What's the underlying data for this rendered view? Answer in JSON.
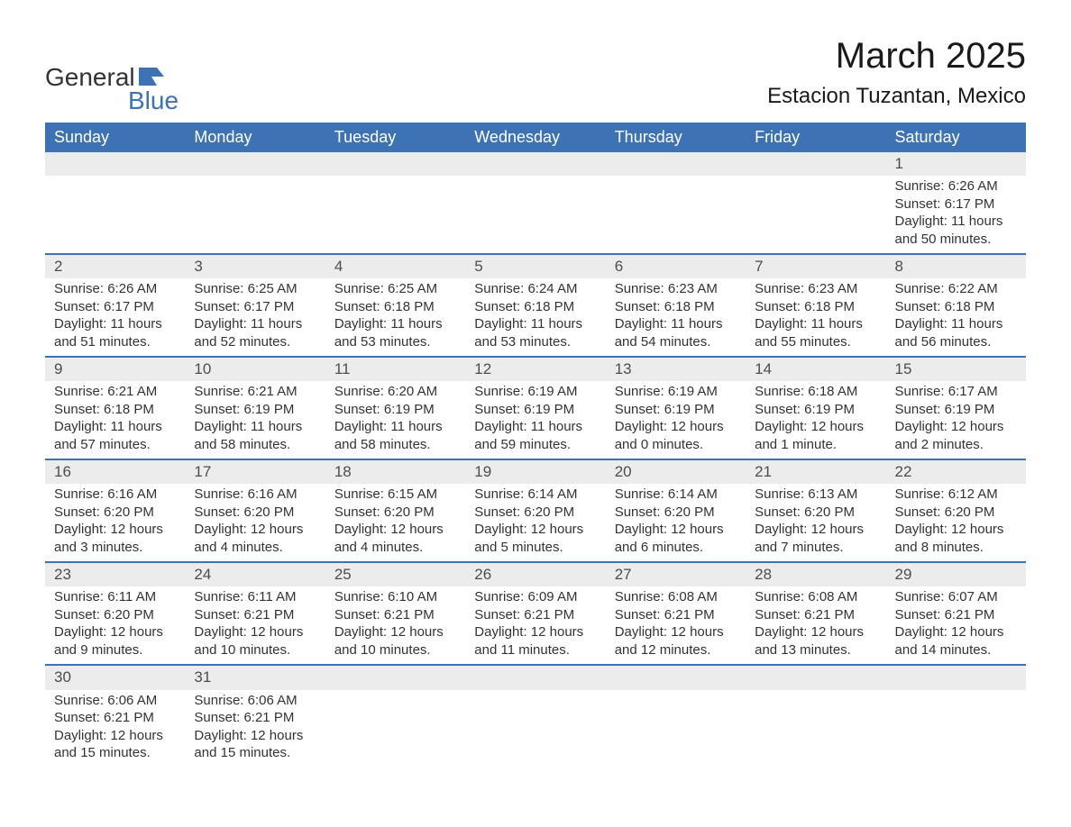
{
  "brand": {
    "line1": "General",
    "line2": "Blue"
  },
  "title": "March 2025",
  "location": "Estacion Tuzantan, Mexico",
  "colors": {
    "header_bg": "#3d72b4",
    "header_text": "#ffffff",
    "daynum_bg": "#ececec",
    "border": "#3d72b4",
    "text": "#333333",
    "brand_blue": "#3d72b4",
    "background": "#ffffff"
  },
  "typography": {
    "title_fontsize": 40,
    "location_fontsize": 24,
    "header_fontsize": 18,
    "cell_fontsize": 15,
    "daynum_fontsize": 17,
    "logo_fontsize": 28
  },
  "weekdays": [
    "Sunday",
    "Monday",
    "Tuesday",
    "Wednesday",
    "Thursday",
    "Friday",
    "Saturday"
  ],
  "weeks": [
    [
      null,
      null,
      null,
      null,
      null,
      null,
      {
        "n": "1",
        "sunrise": "Sunrise: 6:26 AM",
        "sunset": "Sunset: 6:17 PM",
        "day1": "Daylight: 11 hours",
        "day2": "and 50 minutes."
      }
    ],
    [
      {
        "n": "2",
        "sunrise": "Sunrise: 6:26 AM",
        "sunset": "Sunset: 6:17 PM",
        "day1": "Daylight: 11 hours",
        "day2": "and 51 minutes."
      },
      {
        "n": "3",
        "sunrise": "Sunrise: 6:25 AM",
        "sunset": "Sunset: 6:17 PM",
        "day1": "Daylight: 11 hours",
        "day2": "and 52 minutes."
      },
      {
        "n": "4",
        "sunrise": "Sunrise: 6:25 AM",
        "sunset": "Sunset: 6:18 PM",
        "day1": "Daylight: 11 hours",
        "day2": "and 53 minutes."
      },
      {
        "n": "5",
        "sunrise": "Sunrise: 6:24 AM",
        "sunset": "Sunset: 6:18 PM",
        "day1": "Daylight: 11 hours",
        "day2": "and 53 minutes."
      },
      {
        "n": "6",
        "sunrise": "Sunrise: 6:23 AM",
        "sunset": "Sunset: 6:18 PM",
        "day1": "Daylight: 11 hours",
        "day2": "and 54 minutes."
      },
      {
        "n": "7",
        "sunrise": "Sunrise: 6:23 AM",
        "sunset": "Sunset: 6:18 PM",
        "day1": "Daylight: 11 hours",
        "day2": "and 55 minutes."
      },
      {
        "n": "8",
        "sunrise": "Sunrise: 6:22 AM",
        "sunset": "Sunset: 6:18 PM",
        "day1": "Daylight: 11 hours",
        "day2": "and 56 minutes."
      }
    ],
    [
      {
        "n": "9",
        "sunrise": "Sunrise: 6:21 AM",
        "sunset": "Sunset: 6:18 PM",
        "day1": "Daylight: 11 hours",
        "day2": "and 57 minutes."
      },
      {
        "n": "10",
        "sunrise": "Sunrise: 6:21 AM",
        "sunset": "Sunset: 6:19 PM",
        "day1": "Daylight: 11 hours",
        "day2": "and 58 minutes."
      },
      {
        "n": "11",
        "sunrise": "Sunrise: 6:20 AM",
        "sunset": "Sunset: 6:19 PM",
        "day1": "Daylight: 11 hours",
        "day2": "and 58 minutes."
      },
      {
        "n": "12",
        "sunrise": "Sunrise: 6:19 AM",
        "sunset": "Sunset: 6:19 PM",
        "day1": "Daylight: 11 hours",
        "day2": "and 59 minutes."
      },
      {
        "n": "13",
        "sunrise": "Sunrise: 6:19 AM",
        "sunset": "Sunset: 6:19 PM",
        "day1": "Daylight: 12 hours",
        "day2": "and 0 minutes."
      },
      {
        "n": "14",
        "sunrise": "Sunrise: 6:18 AM",
        "sunset": "Sunset: 6:19 PM",
        "day1": "Daylight: 12 hours",
        "day2": "and 1 minute."
      },
      {
        "n": "15",
        "sunrise": "Sunrise: 6:17 AM",
        "sunset": "Sunset: 6:19 PM",
        "day1": "Daylight: 12 hours",
        "day2": "and 2 minutes."
      }
    ],
    [
      {
        "n": "16",
        "sunrise": "Sunrise: 6:16 AM",
        "sunset": "Sunset: 6:20 PM",
        "day1": "Daylight: 12 hours",
        "day2": "and 3 minutes."
      },
      {
        "n": "17",
        "sunrise": "Sunrise: 6:16 AM",
        "sunset": "Sunset: 6:20 PM",
        "day1": "Daylight: 12 hours",
        "day2": "and 4 minutes."
      },
      {
        "n": "18",
        "sunrise": "Sunrise: 6:15 AM",
        "sunset": "Sunset: 6:20 PM",
        "day1": "Daylight: 12 hours",
        "day2": "and 4 minutes."
      },
      {
        "n": "19",
        "sunrise": "Sunrise: 6:14 AM",
        "sunset": "Sunset: 6:20 PM",
        "day1": "Daylight: 12 hours",
        "day2": "and 5 minutes."
      },
      {
        "n": "20",
        "sunrise": "Sunrise: 6:14 AM",
        "sunset": "Sunset: 6:20 PM",
        "day1": "Daylight: 12 hours",
        "day2": "and 6 minutes."
      },
      {
        "n": "21",
        "sunrise": "Sunrise: 6:13 AM",
        "sunset": "Sunset: 6:20 PM",
        "day1": "Daylight: 12 hours",
        "day2": "and 7 minutes."
      },
      {
        "n": "22",
        "sunrise": "Sunrise: 6:12 AM",
        "sunset": "Sunset: 6:20 PM",
        "day1": "Daylight: 12 hours",
        "day2": "and 8 minutes."
      }
    ],
    [
      {
        "n": "23",
        "sunrise": "Sunrise: 6:11 AM",
        "sunset": "Sunset: 6:20 PM",
        "day1": "Daylight: 12 hours",
        "day2": "and 9 minutes."
      },
      {
        "n": "24",
        "sunrise": "Sunrise: 6:11 AM",
        "sunset": "Sunset: 6:21 PM",
        "day1": "Daylight: 12 hours",
        "day2": "and 10 minutes."
      },
      {
        "n": "25",
        "sunrise": "Sunrise: 6:10 AM",
        "sunset": "Sunset: 6:21 PM",
        "day1": "Daylight: 12 hours",
        "day2": "and 10 minutes."
      },
      {
        "n": "26",
        "sunrise": "Sunrise: 6:09 AM",
        "sunset": "Sunset: 6:21 PM",
        "day1": "Daylight: 12 hours",
        "day2": "and 11 minutes."
      },
      {
        "n": "27",
        "sunrise": "Sunrise: 6:08 AM",
        "sunset": "Sunset: 6:21 PM",
        "day1": "Daylight: 12 hours",
        "day2": "and 12 minutes."
      },
      {
        "n": "28",
        "sunrise": "Sunrise: 6:08 AM",
        "sunset": "Sunset: 6:21 PM",
        "day1": "Daylight: 12 hours",
        "day2": "and 13 minutes."
      },
      {
        "n": "29",
        "sunrise": "Sunrise: 6:07 AM",
        "sunset": "Sunset: 6:21 PM",
        "day1": "Daylight: 12 hours",
        "day2": "and 14 minutes."
      }
    ],
    [
      {
        "n": "30",
        "sunrise": "Sunrise: 6:06 AM",
        "sunset": "Sunset: 6:21 PM",
        "day1": "Daylight: 12 hours",
        "day2": "and 15 minutes."
      },
      {
        "n": "31",
        "sunrise": "Sunrise: 6:06 AM",
        "sunset": "Sunset: 6:21 PM",
        "day1": "Daylight: 12 hours",
        "day2": "and 15 minutes."
      },
      null,
      null,
      null,
      null,
      null
    ]
  ]
}
